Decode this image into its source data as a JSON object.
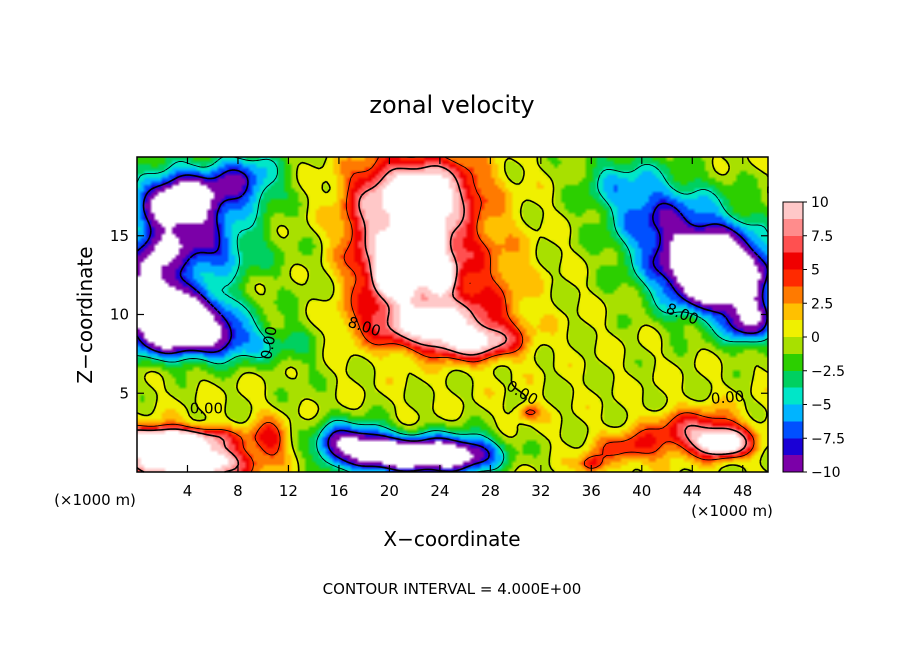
{
  "chart_data": {
    "type": "heatmap",
    "title": "zonal velocity",
    "xlabel": "X−coordinate",
    "ylabel": "Z−coordinate",
    "x_unit_label_left": "(×1000 m)",
    "x_unit_label_right": "(×1000 m)",
    "footer": "CONTOUR INTERVAL = 4.000E+00",
    "xlim": [
      0,
      50
    ],
    "ylim": [
      0,
      20
    ],
    "x_ticks": [
      4,
      8,
      12,
      16,
      20,
      24,
      28,
      32,
      36,
      40,
      44,
      48
    ],
    "x_tick_labels": [
      "4",
      "8",
      "12",
      "16",
      "20",
      "24",
      "28",
      "32",
      "36",
      "40",
      "44",
      "48"
    ],
    "y_ticks": [
      5,
      10,
      15
    ],
    "y_tick_labels": [
      "5",
      "10",
      "15"
    ],
    "colorbar": {
      "range": [
        -10,
        10
      ],
      "ticks": [
        10,
        7.5,
        5,
        2.5,
        0,
        -2.5,
        -5,
        -7.5,
        -10
      ],
      "tick_labels": [
        "10",
        "7.5",
        "5",
        "2.5",
        "0",
        "−2.5",
        "−5",
        "−7.5",
        "−10"
      ],
      "colors": [
        "#7b00a8",
        "#1a00d6",
        "#0050ff",
        "#00b4ff",
        "#00e6c8",
        "#00d060",
        "#2ccf00",
        "#a8e000",
        "#f0f000",
        "#ffc000",
        "#ff7a00",
        "#ff2a00",
        "#f00000",
        "#ff5050",
        "#ff8c8c",
        "#ffc8c8"
      ]
    },
    "contour_labels": [
      {
        "text": "0.00",
        "x": 10.5,
        "z": 8.2,
        "rotate": -80
      },
      {
        "text": "8.00",
        "x": 18.0,
        "z": 9.2,
        "rotate": 18
      },
      {
        "text": "0.00",
        "x": 30.5,
        "z": 5.0,
        "rotate": 30
      },
      {
        "text": "8.00",
        "x": 43.2,
        "z": 10.0,
        "rotate": 22
      },
      {
        "text": "0.00",
        "x": 46.8,
        "z": 4.7,
        "rotate": -5
      },
      {
        "text": "0.00",
        "x": 5.5,
        "z": 4.0,
        "rotate": 0
      }
    ],
    "field_features": [
      {
        "x": 3.5,
        "z": 17.2,
        "v": -14,
        "sx": 3.5,
        "sz": 2.0
      },
      {
        "x": 4.5,
        "z": 14.0,
        "v": -8,
        "sx": 5.0,
        "sz": 1.8
      },
      {
        "x": 3.5,
        "z": 10.0,
        "v": -14,
        "sx": 4.0,
        "sz": 1.7
      },
      {
        "x": 5.5,
        "z": 8.2,
        "v": -8,
        "sx": 5.5,
        "sz": 1.3
      },
      {
        "x": 1.0,
        "z": 11.5,
        "v": -10,
        "sx": 2.0,
        "sz": 3.0
      },
      {
        "x": 2.5,
        "z": 1.0,
        "v": 14,
        "sx": 4.0,
        "sz": 1.4
      },
      {
        "x": 6.0,
        "z": 0.5,
        "v": 9,
        "sx": 3.0,
        "sz": 1.0
      },
      {
        "x": 2.0,
        "z": 2.2,
        "v": 10,
        "sx": 5.0,
        "sz": 0.6
      },
      {
        "x": 10.5,
        "z": 2.0,
        "v": 5,
        "sx": 1.5,
        "sz": 1.5
      },
      {
        "x": 22.0,
        "z": 14.5,
        "v": 12,
        "sx": 4.0,
        "sz": 4.0
      },
      {
        "x": 23.0,
        "z": 9.5,
        "v": 10,
        "sx": 5.0,
        "sz": 1.5
      },
      {
        "x": 26.5,
        "z": 8.2,
        "v": 9,
        "sx": 3.5,
        "sz": 1.0
      },
      {
        "x": 22.5,
        "z": 18.0,
        "v": 9,
        "sx": 4.5,
        "sz": 2.0
      },
      {
        "x": 20.5,
        "z": 12.5,
        "v": 14,
        "sx": 1.5,
        "sz": 1.2
      },
      {
        "x": 22.5,
        "z": 14.5,
        "v": 14,
        "sx": 1.4,
        "sz": 1.2
      },
      {
        "x": 24.0,
        "z": 12.5,
        "v": 14,
        "sx": 1.0,
        "sz": 1.0
      },
      {
        "x": 28.0,
        "z": 12.0,
        "v": 3,
        "sx": 3.0,
        "sz": 4.0
      },
      {
        "x": 18.0,
        "z": 15.0,
        "v": 3,
        "sx": 2.0,
        "sz": 4.0
      },
      {
        "x": 46.5,
        "z": 12.5,
        "v": -14,
        "sx": 4.0,
        "sz": 2.2
      },
      {
        "x": 44.5,
        "z": 14.0,
        "v": -8,
        "sx": 4.5,
        "sz": 3.5
      },
      {
        "x": 40.5,
        "z": 16.5,
        "v": -5,
        "sx": 3.5,
        "sz": 3.0
      },
      {
        "x": 48.5,
        "z": 9.5,
        "v": -9,
        "sx": 2.0,
        "sz": 1.5
      },
      {
        "x": 37.5,
        "z": 18.5,
        "v": -3,
        "sx": 3.0,
        "sz": 2.0
      },
      {
        "x": 44.5,
        "z": 2.5,
        "v": 8,
        "sx": 3.5,
        "sz": 1.3
      },
      {
        "x": 46.5,
        "z": 1.8,
        "v": 13,
        "sx": 1.8,
        "sz": 0.8
      },
      {
        "x": 39.0,
        "z": 1.5,
        "v": 5,
        "sx": 2.5,
        "sz": 1.0
      },
      {
        "x": 36.0,
        "z": 0.5,
        "v": 6,
        "sx": 1.0,
        "sz": 0.6
      },
      {
        "x": 21.5,
        "z": 1.0,
        "v": -14,
        "sx": 4.5,
        "sz": 1.2
      },
      {
        "x": 18.0,
        "z": 2.0,
        "v": -8,
        "sx": 2.0,
        "sz": 1.2
      },
      {
        "x": 15.5,
        "z": 1.8,
        "v": -7,
        "sx": 1.5,
        "sz": 1.3
      },
      {
        "x": 26.0,
        "z": 1.2,
        "v": -8,
        "sx": 3.0,
        "sz": 1.2
      },
      {
        "x": 8.5,
        "z": 18.5,
        "v": -7,
        "sx": 3.0,
        "sz": 2.0
      },
      {
        "x": 13.0,
        "z": 8.0,
        "v": -1,
        "sx": 2.0,
        "sz": 6.0
      },
      {
        "x": 31.0,
        "z": 3.8,
        "v": 5,
        "sx": 1.0,
        "sz": 0.5
      }
    ]
  }
}
